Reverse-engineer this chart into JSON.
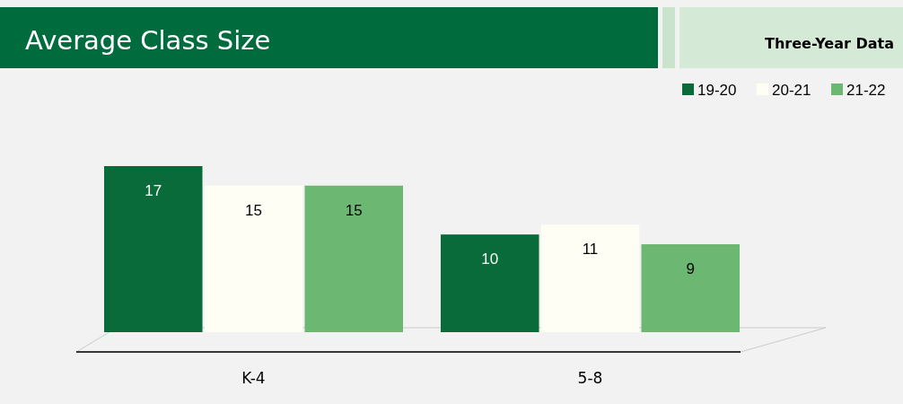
{
  "chart_data": {
    "type": "bar",
    "title": "Average Class Size",
    "subtitle": "Three-Year Data",
    "categories": [
      "K-4",
      "5-8"
    ],
    "series": [
      {
        "name": "19-20",
        "color": "#0a6b3a",
        "values": [
          17,
          10
        ]
      },
      {
        "name": "20-21",
        "color": "#fffef5",
        "values": [
          15,
          11
        ]
      },
      {
        "name": "21-22",
        "color": "#6cb872",
        "values": [
          15,
          9
        ]
      }
    ],
    "data_labels": true,
    "legend": "top right"
  }
}
